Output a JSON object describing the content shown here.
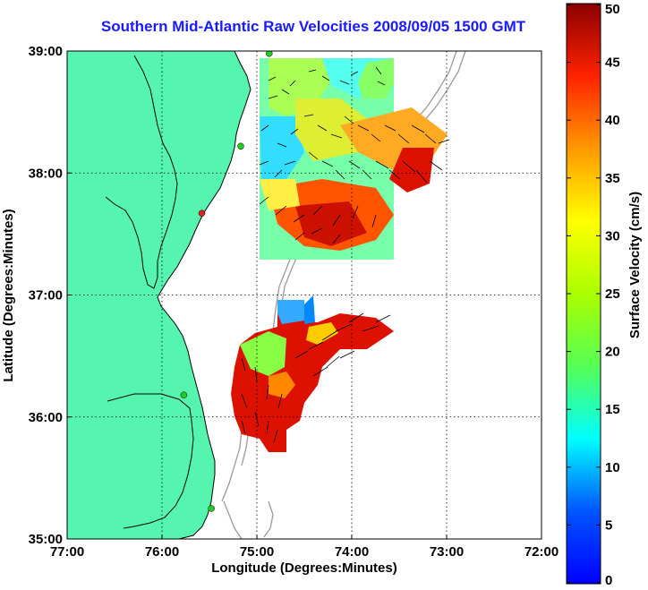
{
  "title": "Southern Mid-Atlantic Raw Velocities 2008/09/05 1500 GMT",
  "x_axis": {
    "label": "Longitude (Degrees:Minutes)",
    "ticks": [
      "77:00",
      "76:00",
      "75:00",
      "74:00",
      "73:00",
      "72:00"
    ]
  },
  "y_axis": {
    "label": "Latitude (Degrees:Minutes)",
    "ticks": [
      "39:00",
      "38:00",
      "37:00",
      "36:00",
      "35:00"
    ]
  },
  "colorbar": {
    "label": "Surface Velocity (cm/s)",
    "ticks": [
      "50",
      "45",
      "40",
      "35",
      "30",
      "25",
      "20",
      "15",
      "10",
      "5",
      "0"
    ],
    "min": 0,
    "max": 50
  },
  "map": {
    "lon_range": [
      -77,
      -72
    ],
    "lat_range": [
      35,
      39
    ],
    "grid": true,
    "land_color": "#55f5b0",
    "stations": [
      {
        "lon": -74.87,
        "lat": 38.98,
        "color": "#22cc22"
      },
      {
        "lon": -75.17,
        "lat": 38.22,
        "color": "#22cc22"
      },
      {
        "lon": -75.58,
        "lat": 37.67,
        "color": "#dd2222"
      },
      {
        "lon": -75.77,
        "lat": 36.18,
        "color": "#22cc22"
      },
      {
        "lon": -75.48,
        "lat": 35.25,
        "color": "#22cc22"
      }
    ]
  }
}
